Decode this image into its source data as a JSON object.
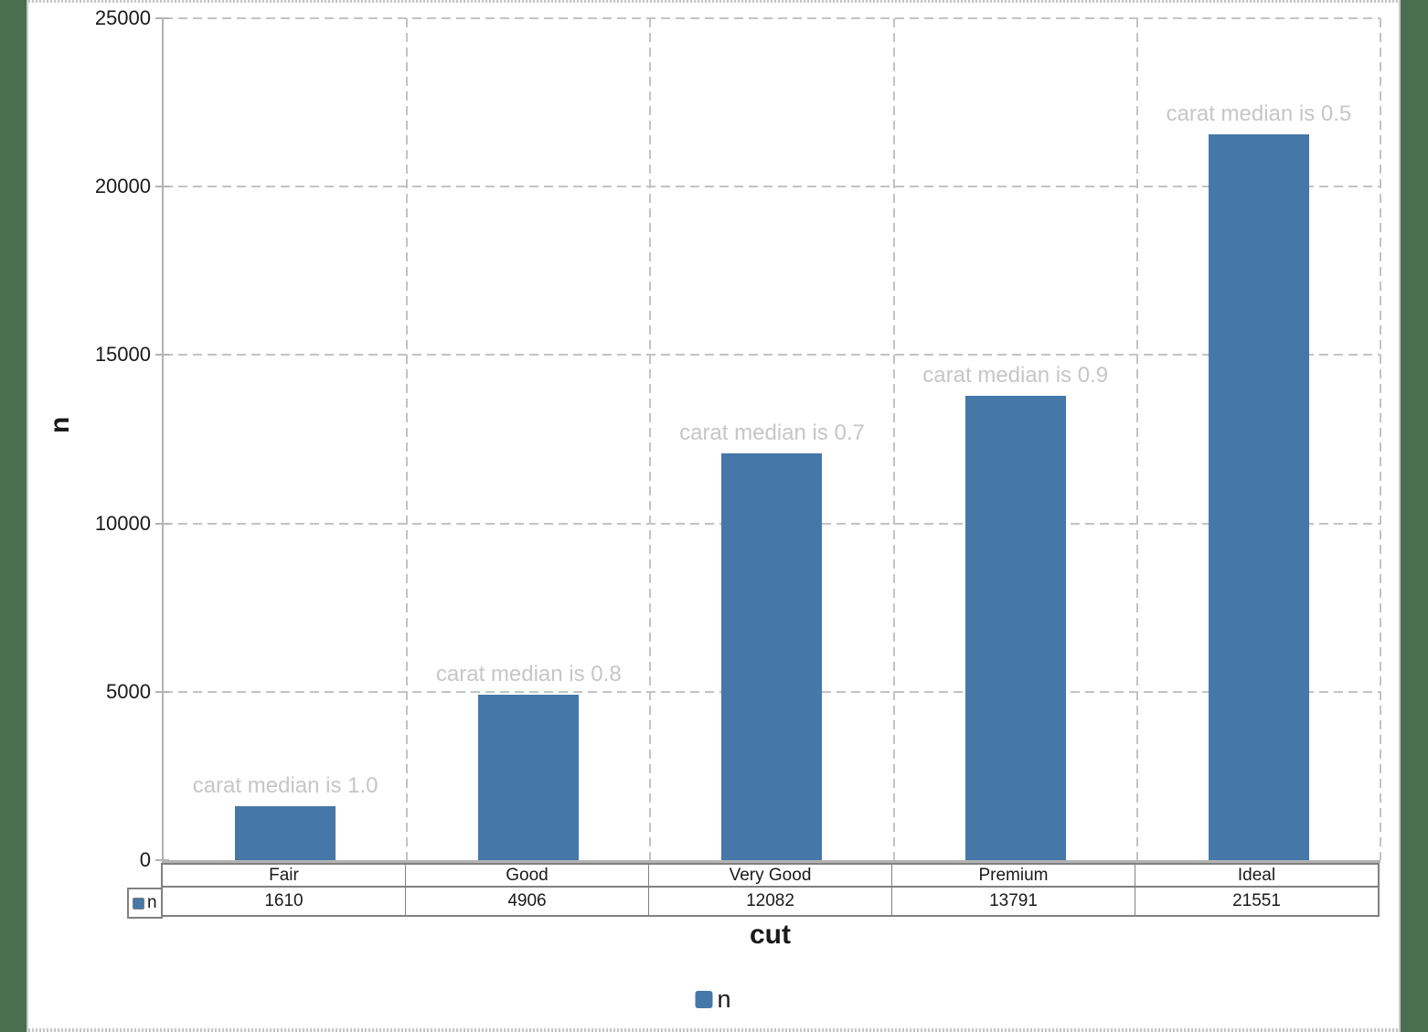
{
  "chart_data": {
    "type": "bar",
    "title": "",
    "xlabel": "cut",
    "ylabel": "n",
    "categories": [
      "Fair",
      "Good",
      "Very Good",
      "Premium",
      "Ideal"
    ],
    "series": [
      {
        "name": "n",
        "values": [
          1610,
          4906,
          12082,
          13791,
          21551
        ]
      }
    ],
    "bar_annotations": [
      "carat median is 1.0",
      "carat median is 0.8",
      "carat median is 0.7",
      "carat median is 0.9",
      "carat median is 0.5"
    ],
    "y_ticks": [
      0,
      5000,
      10000,
      15000,
      20000,
      25000
    ],
    "ylim": [
      0,
      25000
    ],
    "grid": "dashed major gridlines, horizontal and vertical",
    "legend_position": "bottom-center",
    "legend_items": [
      {
        "label": "n",
        "swatch_color": "#4577a9"
      }
    ],
    "data_table": {
      "row_label": "n",
      "values": [
        1610,
        4906,
        12082,
        13791,
        21551
      ]
    },
    "colors": {
      "bar": "#4577a9",
      "annotation_text": "#c6c6c6",
      "gridline": "#c3c3c3",
      "axis_line": "#b3b3b3",
      "table_border": "#808080",
      "text": "#1a1a1a",
      "background": "#ffffff",
      "surround": "#4a6f50"
    }
  }
}
